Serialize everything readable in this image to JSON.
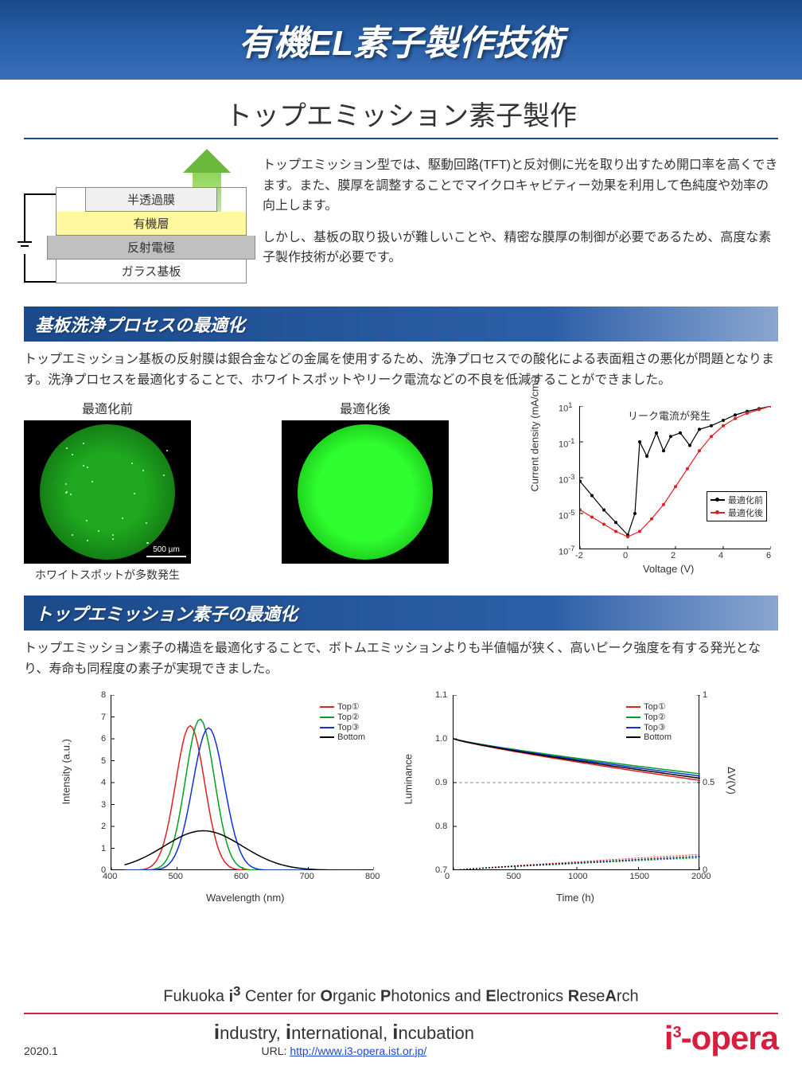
{
  "title": "有機EL素子製作技術",
  "subtitle": "トップエミッション素子製作",
  "diagram": {
    "arrow_label": "光",
    "layers": [
      {
        "name": "半透過膜",
        "bg": "#f0f0f0"
      },
      {
        "name": "有機層",
        "bg": "#fff8a0"
      },
      {
        "name": "反射電極",
        "bg": "#c0c0c0"
      },
      {
        "name": "ガラス基板",
        "bg": "#ffffff"
      }
    ]
  },
  "intro_p1": "トップエミッション型では、駆動回路(TFT)と反対側に光を取り出すため開口率を高くできます。また、膜厚を調整することでマイクロキャビティー効果を利用して色純度や効率の向上します。",
  "intro_p2": "しかし、基板の取り扱いが難しいことや、精密な膜厚の制御が必要であるため、高度な素子製作技術が必要です。",
  "section1_header": "基板洗浄プロセスの最適化",
  "section1_text": "トップエミッション基板の反射膜は銀合金などの金属を使用するため、洗浄プロセスでの酸化による表面粗さの悪化が問題となります。洗浄プロセスを最適化することで、ホワイトスポットやリーク電流などの不良を低減することができました。",
  "fig_before_label": "最適化前",
  "fig_before_caption": "ホワイトスポットが多数発生",
  "fig_before_color": "#1fa820",
  "fig_after_label": "最適化後",
  "fig_after_color": "#2fff2f",
  "scale_bar": "500 µm",
  "iv_chart": {
    "ylabel": "Current density (mA/cm²)",
    "xlabel": "Voltage (V)",
    "xlim": [
      -2,
      6
    ],
    "xtick_step": 2,
    "y_exponents": [
      -7,
      -5,
      -3,
      -1,
      1
    ],
    "annotation": "リーク電流が発生",
    "series": [
      {
        "name": "最適化前",
        "color": "#000000",
        "points": [
          [
            -2,
            -3.2
          ],
          [
            -1.5,
            -4.0
          ],
          [
            -1.0,
            -4.8
          ],
          [
            -0.5,
            -5.5
          ],
          [
            0,
            -6.2
          ],
          [
            0.3,
            -5.0
          ],
          [
            0.5,
            -1.0
          ],
          [
            0.8,
            -1.8
          ],
          [
            1.2,
            -0.5
          ],
          [
            1.5,
            -1.5
          ],
          [
            1.8,
            -0.7
          ],
          [
            2.2,
            -0.5
          ],
          [
            2.6,
            -1.2
          ],
          [
            3.0,
            -0.3
          ],
          [
            3.5,
            -0.1
          ],
          [
            4.0,
            0.2
          ],
          [
            4.5,
            0.5
          ],
          [
            5.0,
            0.7
          ],
          [
            5.5,
            0.85
          ],
          [
            6.0,
            1.0
          ]
        ]
      },
      {
        "name": "最適化後",
        "color": "#e02020",
        "points": [
          [
            -2,
            -4.8
          ],
          [
            -1.5,
            -5.2
          ],
          [
            -1.0,
            -5.6
          ],
          [
            -0.5,
            -6.0
          ],
          [
            0,
            -6.3
          ],
          [
            0.5,
            -6.0
          ],
          [
            1.0,
            -5.3
          ],
          [
            1.5,
            -4.5
          ],
          [
            2.0,
            -3.5
          ],
          [
            2.5,
            -2.5
          ],
          [
            3.0,
            -1.5
          ],
          [
            3.5,
            -0.7
          ],
          [
            4.0,
            -0.1
          ],
          [
            4.5,
            0.3
          ],
          [
            5.0,
            0.6
          ],
          [
            5.5,
            0.8
          ],
          [
            6.0,
            1.0
          ]
        ]
      }
    ]
  },
  "section2_header": "トップエミッション素子の最適化",
  "section2_text": "トップエミッション素子の構造を最適化することで、ボトムエミッションよりも半値幅が狭く、高いピーク強度を有する発光となり、寿命も同程度の素子が実現できました。",
  "spectrum_chart": {
    "xlabel": "Wavelength (nm)",
    "ylabel": "Intensity (a.u.)",
    "xlim": [
      400,
      800
    ],
    "xtick_step": 100,
    "ylim": [
      0,
      8
    ],
    "ytick_step": 1,
    "series": [
      {
        "name": "Top①",
        "color": "#e02020",
        "peak_x": 520,
        "peak_y": 6.6,
        "width": 22
      },
      {
        "name": "Top②",
        "color": "#00a020",
        "peak_x": 535,
        "peak_y": 6.9,
        "width": 22
      },
      {
        "name": "Top③",
        "color": "#1030e0",
        "peak_x": 548,
        "peak_y": 6.5,
        "width": 24
      },
      {
        "name": "Bottom",
        "color": "#000000",
        "peak_x": 540,
        "peak_y": 1.8,
        "width": 60
      }
    ]
  },
  "lifetime_chart": {
    "xlabel": "Time (h)",
    "ylabel": "Luminance",
    "ylabel2": "ΔV(V)",
    "xlim": [
      0,
      2000
    ],
    "xtick_step": 500,
    "ylim": [
      0.7,
      1.1
    ],
    "ytick_step": 0.1,
    "y2lim": [
      0,
      1
    ],
    "y2tick_step": 0.5,
    "series": [
      {
        "name": "Top①",
        "color": "#e02020",
        "end_L": 0.905,
        "end_dV": 0.09
      },
      {
        "name": "Top②",
        "color": "#00a020",
        "end_L": 0.92,
        "end_dV": 0.07
      },
      {
        "name": "Top③",
        "color": "#1030e0",
        "end_L": 0.915,
        "end_dV": 0.075
      },
      {
        "name": "Bottom",
        "color": "#000000",
        "end_L": 0.91,
        "end_dV": 0.08
      }
    ]
  },
  "footer": {
    "center_name_prefix": "Fukuoka ",
    "center_name": "i³ Center for Organic Photonics and Electronics ReseArch",
    "tagline_words": [
      "industry",
      "international",
      "incubation"
    ],
    "url_label": "URL: ",
    "url": "http://www.i3-opera.ist.or.jp/",
    "logo_text": "i³-opera",
    "date": "2020.1"
  },
  "colors": {
    "title_grad_top": "#1a4a8a",
    "title_grad_bot": "#3a6db8",
    "accent_red": "#d81e3f",
    "arrow_green": "#6bb83d"
  }
}
